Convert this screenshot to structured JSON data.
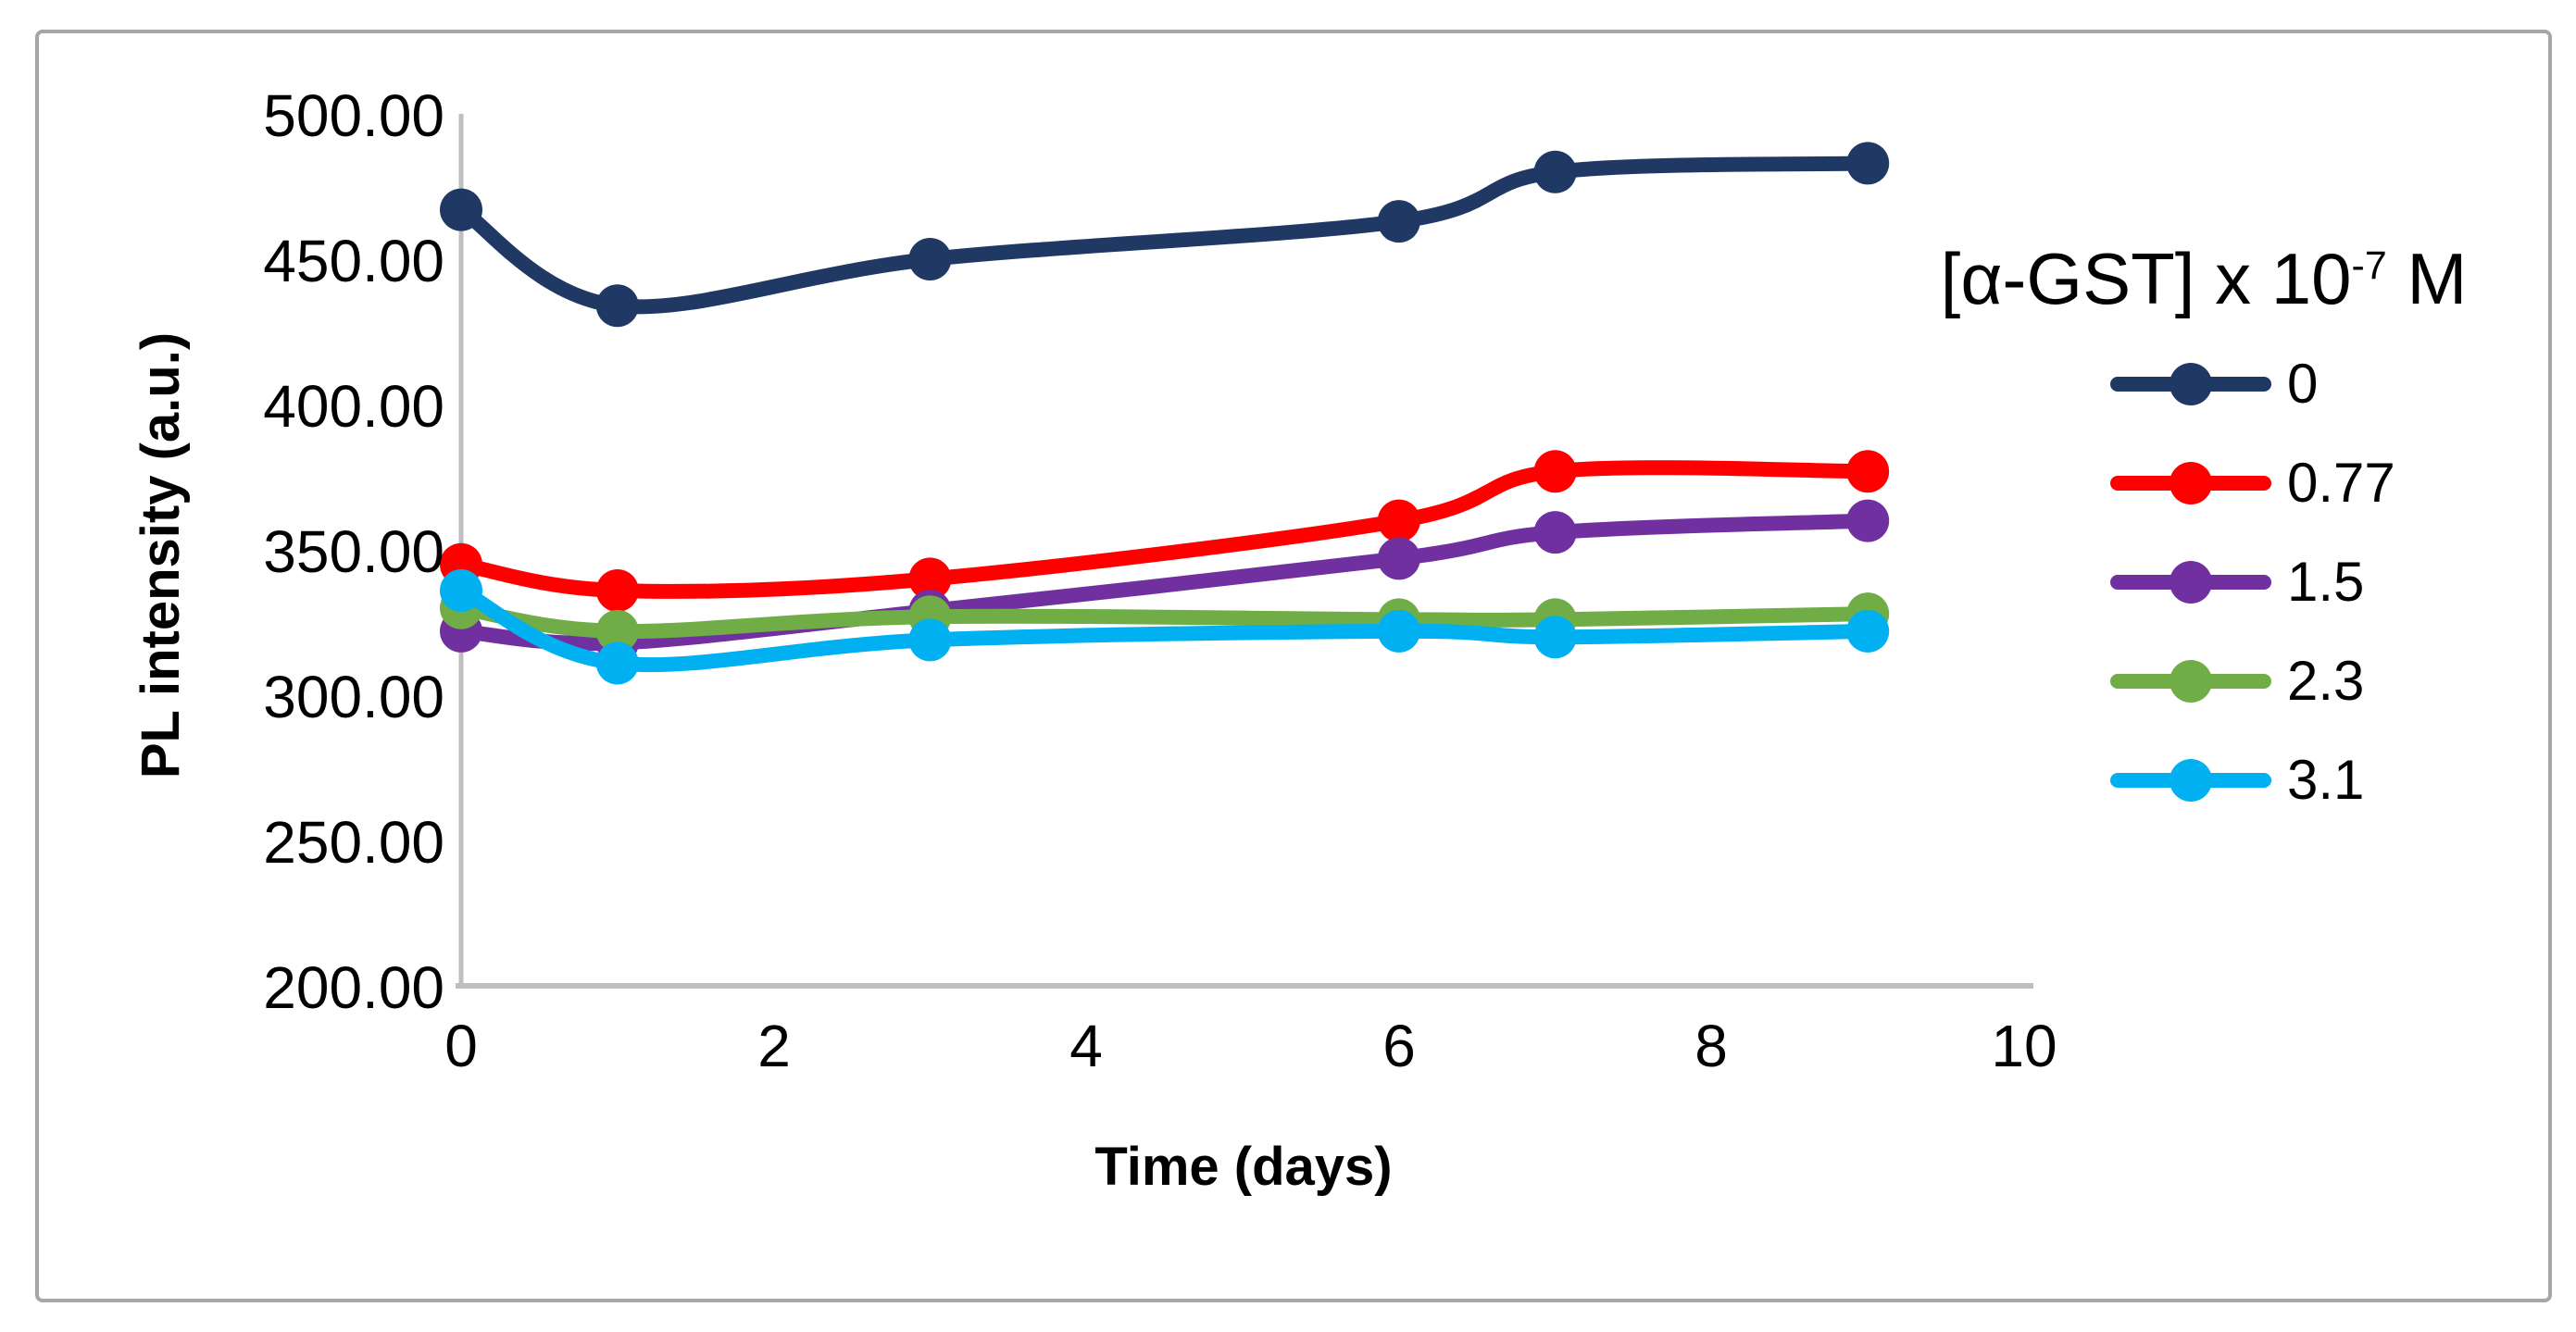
{
  "figure": {
    "y_axis_title": "PL intensity (a.u.)",
    "x_axis_title": "Time (days)",
    "legend_title_prefix": "[α-GST] x 10",
    "legend_title_sup": "-7",
    "legend_title_suffix": " M"
  },
  "chart_data": {
    "type": "line",
    "title": "",
    "xlabel": "Time (days)",
    "ylabel": "PL intensity (a.u.)",
    "legend_title": "[α-GST] x 10⁻⁷ M",
    "legend_position": "right",
    "grid": false,
    "smooth_lines": true,
    "markers": true,
    "xlim": [
      0,
      10
    ],
    "ylim": [
      200,
      500
    ],
    "x_ticks": [
      0,
      2,
      4,
      6,
      8,
      10
    ],
    "x_tick_labels": [
      "0",
      "2",
      "4",
      "6",
      "8",
      "10"
    ],
    "y_ticks": [
      200,
      250,
      300,
      350,
      400,
      450,
      500
    ],
    "y_tick_labels": [
      "200.00",
      "250.00",
      "300.00",
      "350.00",
      "400.00",
      "450.00",
      "500.00"
    ],
    "x": [
      0,
      1,
      3,
      6,
      7,
      9
    ],
    "series": [
      {
        "name": "0",
        "color": "#1F3864",
        "values": [
          467,
          434,
          450,
          463,
          480,
          483
        ]
      },
      {
        "name": "0.77",
        "color": "#FF0000",
        "values": [
          345,
          336,
          340,
          360,
          377,
          377
        ]
      },
      {
        "name": "1.5",
        "color": "#7030A0",
        "values": [
          322,
          318,
          329,
          347,
          356,
          360
        ]
      },
      {
        "name": "2.3",
        "color": "#70AD47",
        "values": [
          330,
          322,
          327,
          326,
          326,
          328
        ]
      },
      {
        "name": "3.1",
        "color": "#00B0F0",
        "values": [
          336,
          311,
          319,
          322,
          320,
          322
        ]
      }
    ],
    "axis_color": "#BFBFBF",
    "frame_border_color": "#A6A6A6",
    "text_color": "#000000"
  }
}
